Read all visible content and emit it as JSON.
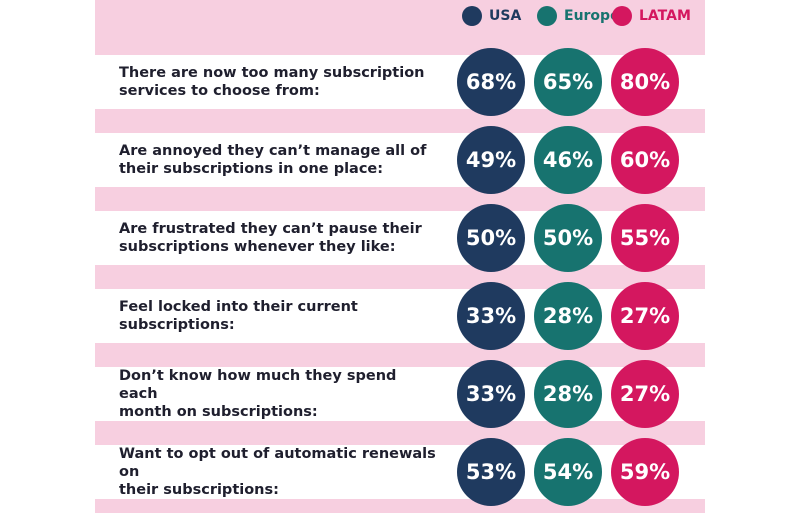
{
  "chart_data": {
    "type": "table",
    "legend_position": "top-right",
    "series": [
      {
        "name": "USA",
        "color": "#1f3a5f",
        "values": [
          68,
          49,
          50,
          33,
          33,
          53
        ],
        "labels": [
          "68%",
          "49%",
          "50%",
          "33%",
          "33%",
          "53%"
        ]
      },
      {
        "name": "Europe",
        "color": "#17736f",
        "values": [
          65,
          46,
          50,
          28,
          28,
          54
        ],
        "labels": [
          "65%",
          "46%",
          "50%",
          "28%",
          "28%",
          "54%"
        ]
      },
      {
        "name": "LATAM",
        "color": "#d4175f",
        "values": [
          80,
          60,
          55,
          27,
          27,
          59
        ],
        "labels": [
          "80%",
          "60%",
          "55%",
          "27%",
          "27%",
          "59%"
        ]
      }
    ],
    "categories": [
      "There are now too many subscription\nservices to choose from:",
      "Are annoyed they can’t manage all of\ntheir subscriptions in one place:",
      "Are frustrated they can’t pause their\nsubscriptions whenever they like:",
      "Feel locked into their current subscriptions:",
      "Don’t know how much they spend each\nmonth on subscriptions:",
      "Want to opt out of automatic renewals on\ntheir subscriptions:"
    ]
  },
  "colors": {
    "panel_background": "#f7cfe0",
    "row_background": "#ffffff",
    "text": "#1f1f2e"
  }
}
